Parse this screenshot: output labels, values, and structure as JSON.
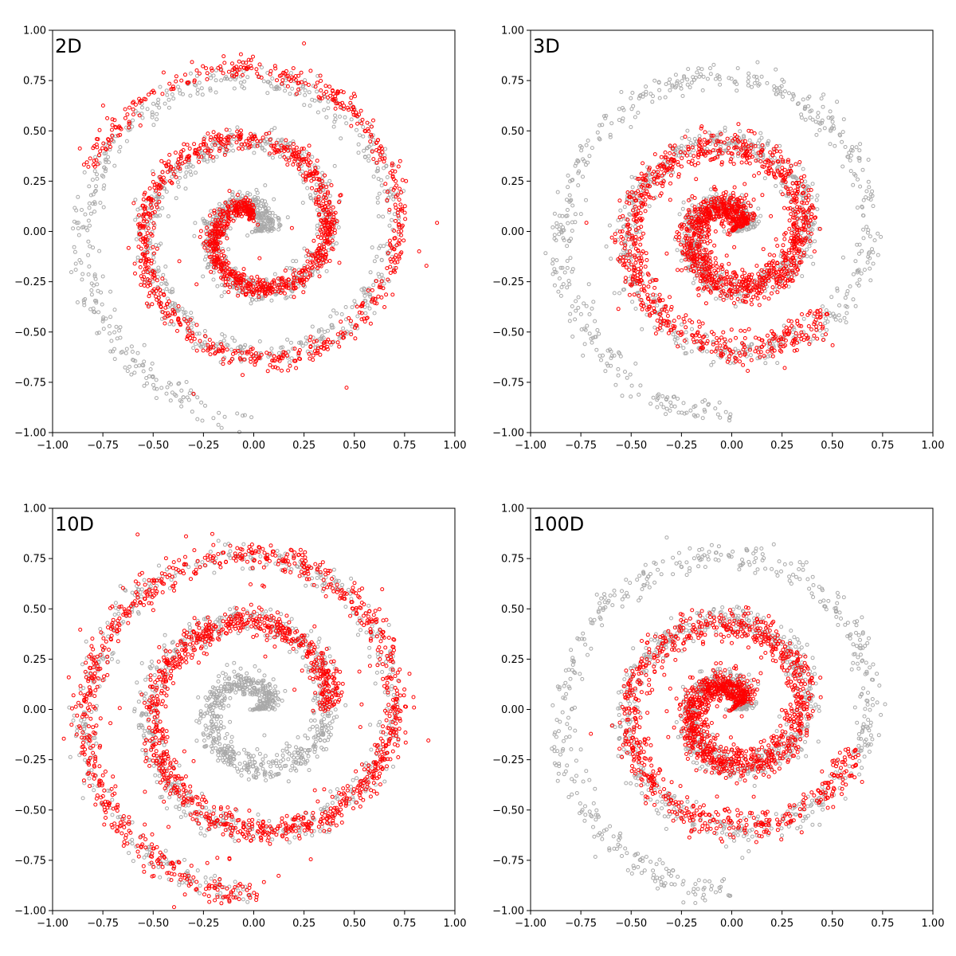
{
  "chart_data": [
    {
      "type": "scatter",
      "panel_label": "2D",
      "xlim": [
        -1.0,
        1.0
      ],
      "ylim": [
        -1.0,
        1.0
      ],
      "xticks": [
        "−1.00",
        "−0.75",
        "−0.50",
        "−0.25",
        "0.00",
        "0.25",
        "0.50",
        "0.75",
        "1.00"
      ],
      "yticks": [
        "−1.00",
        "−0.75",
        "−0.50",
        "−0.25",
        "0.00",
        "0.25",
        "0.50",
        "0.75",
        "1.00"
      ],
      "grid": false,
      "series": [
        {
          "role": "reference",
          "color": "#a9a9a9",
          "marker": "open-circle",
          "spiral": {
            "theta_start": 3.14,
            "theta_end": 20.42,
            "r_start": 0.05,
            "r_end": 0.92,
            "width": 0.035,
            "count": 1500
          }
        },
        {
          "role": "samples",
          "color": "#ff0000",
          "marker": "open-circle",
          "spiral": {
            "theta_start": 4.7,
            "theta_end": 18.5,
            "r_start": 0.1,
            "r_end": 0.88,
            "width": 0.025,
            "count": 1600,
            "offset": [
              0.0,
              0.0
            ]
          },
          "scatter_fraction": 0.04
        }
      ]
    },
    {
      "type": "scatter",
      "panel_label": "3D",
      "xlim": [
        -1.0,
        1.0
      ],
      "ylim": [
        -1.0,
        1.0
      ],
      "xticks": [
        "−1.00",
        "−0.75",
        "−0.50",
        "−0.25",
        "0.00",
        "0.25",
        "0.50",
        "0.75",
        "1.00"
      ],
      "yticks": [
        "−1.00",
        "−0.75",
        "−0.50",
        "−0.25",
        "0.00",
        "0.25",
        "0.50",
        "0.75",
        "1.00"
      ],
      "grid": false,
      "series": [
        {
          "role": "reference",
          "color": "#a9a9a9",
          "marker": "open-circle",
          "spiral": {
            "theta_start": 3.14,
            "theta_end": 20.42,
            "r_start": 0.05,
            "r_end": 0.92,
            "width": 0.035,
            "count": 1500
          }
        },
        {
          "role": "samples",
          "color": "#ff0000",
          "marker": "open-circle",
          "spiral": {
            "theta_start": 3.6,
            "theta_end": 15.0,
            "r_start": 0.06,
            "r_end": 0.62,
            "width": 0.04,
            "count": 1700,
            "offset": [
              0.0,
              0.0
            ]
          },
          "scatter_fraction": 0.03
        }
      ]
    },
    {
      "type": "scatter",
      "panel_label": "10D",
      "xlim": [
        -1.0,
        1.0
      ],
      "ylim": [
        -1.0,
        1.0
      ],
      "xticks": [
        "−1.00",
        "−0.75",
        "−0.50",
        "−0.25",
        "0.00",
        "0.25",
        "0.50",
        "0.75",
        "1.00"
      ],
      "yticks": [
        "−1.00",
        "−0.75",
        "−0.50",
        "−0.25",
        "0.00",
        "0.25",
        "0.50",
        "0.75",
        "1.00"
      ],
      "grid": false,
      "series": [
        {
          "role": "reference",
          "color": "#a9a9a9",
          "marker": "open-circle",
          "spiral": {
            "theta_start": 3.14,
            "theta_end": 20.42,
            "r_start": 0.05,
            "r_end": 0.92,
            "width": 0.035,
            "count": 1500
          }
        },
        {
          "role": "samples",
          "color": "#ff0000",
          "marker": "open-circle",
          "spiral": {
            "theta_start": 9.4,
            "theta_end": 20.42,
            "r_start": 0.35,
            "r_end": 0.93,
            "width": 0.03,
            "count": 1700,
            "offset": [
              0.02,
              0.0
            ]
          },
          "scatter_fraction": 0.07
        }
      ]
    },
    {
      "type": "scatter",
      "panel_label": "100D",
      "xlim": [
        -1.0,
        1.0
      ],
      "ylim": [
        -1.0,
        1.0
      ],
      "xticks": [
        "−1.00",
        "−0.75",
        "−0.50",
        "−0.25",
        "0.00",
        "0.25",
        "0.50",
        "0.75",
        "1.00"
      ],
      "yticks": [
        "−1.00",
        "−0.75",
        "−0.50",
        "−0.25",
        "0.00",
        "0.25",
        "0.50",
        "0.75",
        "1.00"
      ],
      "grid": false,
      "series": [
        {
          "role": "reference",
          "color": "#a9a9a9",
          "marker": "open-circle",
          "spiral": {
            "theta_start": 3.14,
            "theta_end": 20.42,
            "r_start": 0.05,
            "r_end": 0.92,
            "width": 0.035,
            "count": 1500
          }
        },
        {
          "role": "samples",
          "color": "#ff0000",
          "marker": "open-circle",
          "spiral": {
            "theta_start": 3.6,
            "theta_end": 15.4,
            "r_start": 0.06,
            "r_end": 0.64,
            "width": 0.038,
            "count": 1600,
            "offset": [
              0.0,
              0.0
            ]
          },
          "scatter_fraction": 0.03
        }
      ]
    }
  ]
}
